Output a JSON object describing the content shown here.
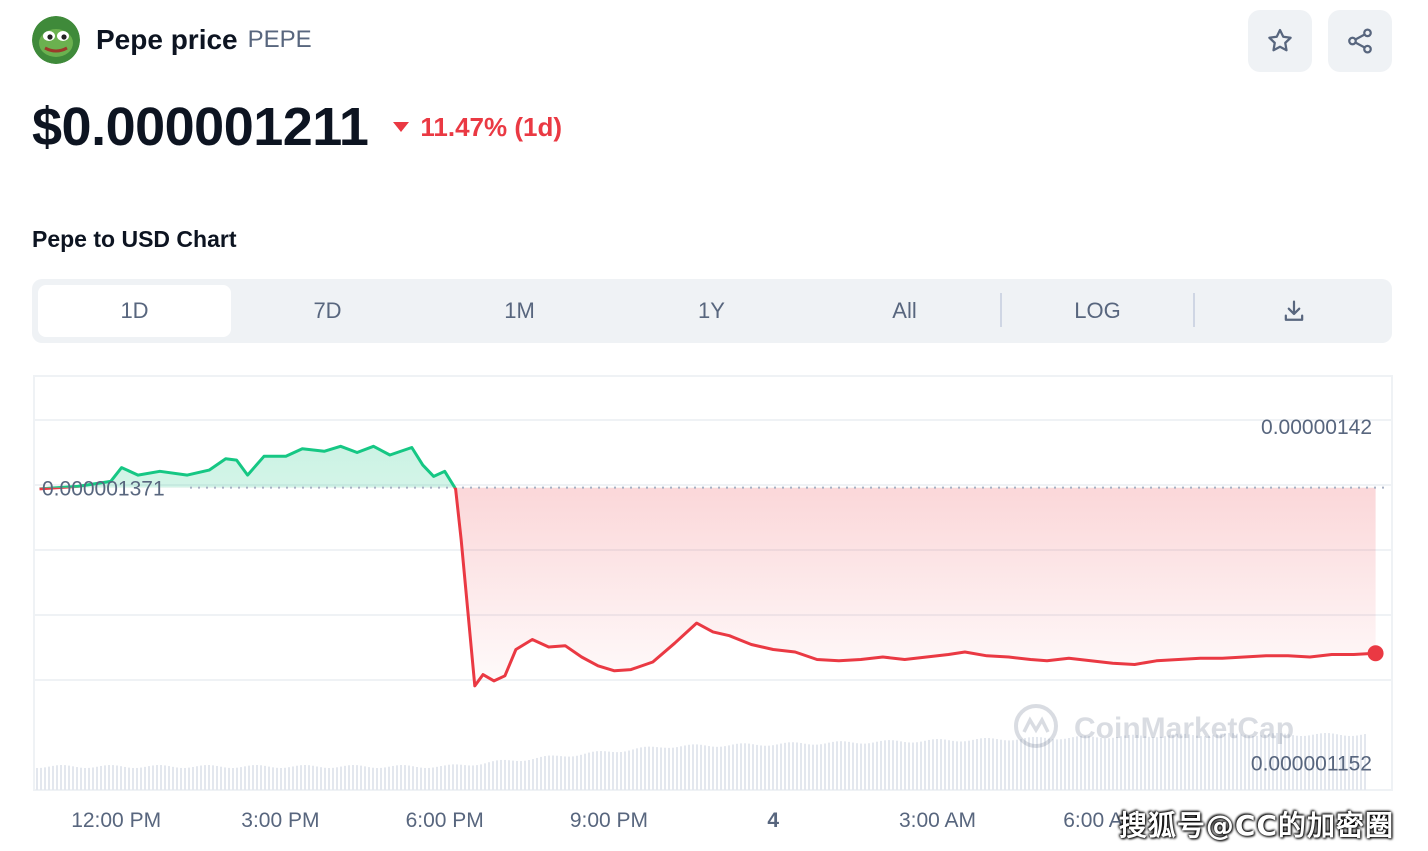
{
  "coin": {
    "name": "Pepe price",
    "symbol": "PEPE",
    "logo_icon": "pepe-frog-icon"
  },
  "header_actions": {
    "watchlist_icon": "star-icon",
    "share_icon": "share-icon"
  },
  "price": {
    "value": "$0.000001211",
    "change": "11.47% (1d)",
    "direction": "down",
    "change_color": "#ea3943"
  },
  "chart_title": "Pepe to USD Chart",
  "tabs": [
    {
      "label": "1D",
      "active": true
    },
    {
      "label": "7D",
      "active": false
    },
    {
      "label": "1M",
      "active": false
    },
    {
      "label": "1Y",
      "active": false
    },
    {
      "label": "All",
      "active": false
    },
    {
      "label": "LOG",
      "active": false
    },
    {
      "label": "download-icon",
      "active": false
    }
  ],
  "chart_data": {
    "type": "area",
    "baseline": 1.371e-06,
    "baseline_label": "0.000001371",
    "ylim": [
      1.13e-06,
      1.46e-06
    ],
    "y_axis_labels": [
      "0.00000142",
      "0.000001152"
    ],
    "x_tick_labels": [
      "12:00 PM",
      "3:00 PM",
      "6:00 PM",
      "9:00 PM",
      "4",
      "3:00 AM",
      "6:00 AM"
    ],
    "x_tick_hours": [
      12,
      15,
      18,
      21,
      24,
      27,
      30
    ],
    "xlim": [
      10.5,
      35.3
    ],
    "up_color": "#16c784",
    "down_color": "#ea3943",
    "watermark": "CoinMarketCap",
    "series": [
      {
        "values": [
          [
            10.6,
            1.37e-06
          ],
          [
            11.3,
            1.372e-06
          ],
          [
            11.9,
            1.376e-06
          ],
          [
            12.1,
            1.387e-06
          ],
          [
            12.4,
            1.381e-06
          ],
          [
            12.8,
            1.384e-06
          ],
          [
            13.3,
            1.381e-06
          ],
          [
            13.7,
            1.385e-06
          ],
          [
            14.0,
            1.394e-06
          ],
          [
            14.2,
            1.393e-06
          ],
          [
            14.4,
            1.381e-06
          ],
          [
            14.7,
            1.396e-06
          ],
          [
            15.1,
            1.396e-06
          ],
          [
            15.4,
            1.402e-06
          ],
          [
            15.8,
            1.4e-06
          ],
          [
            16.1,
            1.404e-06
          ],
          [
            16.4,
            1.399e-06
          ],
          [
            16.7,
            1.404e-06
          ],
          [
            17.0,
            1.397e-06
          ],
          [
            17.4,
            1.403e-06
          ],
          [
            17.6,
            1.389e-06
          ],
          [
            17.8,
            1.38e-06
          ],
          [
            18.0,
            1.384e-06
          ],
          [
            18.2,
            1.37e-06
          ],
          [
            18.3,
            1.33e-06
          ],
          [
            18.45,
            1.26e-06
          ],
          [
            18.55,
            1.213e-06
          ],
          [
            18.7,
            1.222e-06
          ],
          [
            18.9,
            1.217e-06
          ],
          [
            19.1,
            1.221e-06
          ],
          [
            19.3,
            1.242e-06
          ],
          [
            19.6,
            1.25e-06
          ],
          [
            19.9,
            1.244e-06
          ],
          [
            20.2,
            1.245e-06
          ],
          [
            20.5,
            1.236e-06
          ],
          [
            20.8,
            1.229e-06
          ],
          [
            21.1,
            1.225e-06
          ],
          [
            21.4,
            1.226e-06
          ],
          [
            21.8,
            1.232e-06
          ],
          [
            22.2,
            1.247e-06
          ],
          [
            22.6,
            1.263e-06
          ],
          [
            22.9,
            1.256e-06
          ],
          [
            23.2,
            1.253e-06
          ],
          [
            23.6,
            1.246e-06
          ],
          [
            24.0,
            1.242e-06
          ],
          [
            24.4,
            1.24e-06
          ],
          [
            24.8,
            1.234e-06
          ],
          [
            25.2,
            1.233e-06
          ],
          [
            25.6,
            1.234e-06
          ],
          [
            26.0,
            1.236e-06
          ],
          [
            26.4,
            1.234e-06
          ],
          [
            26.8,
            1.236e-06
          ],
          [
            27.2,
            1.238e-06
          ],
          [
            27.5,
            1.24e-06
          ],
          [
            27.9,
            1.237e-06
          ],
          [
            28.3,
            1.236e-06
          ],
          [
            28.7,
            1.234e-06
          ],
          [
            29.0,
            1.233e-06
          ],
          [
            29.4,
            1.235e-06
          ],
          [
            29.8,
            1.233e-06
          ],
          [
            30.2,
            1.231e-06
          ],
          [
            30.6,
            1.23e-06
          ],
          [
            31.0,
            1.233e-06
          ],
          [
            31.4,
            1.234e-06
          ],
          [
            31.8,
            1.235e-06
          ],
          [
            32.2,
            1.235e-06
          ],
          [
            32.6,
            1.236e-06
          ],
          [
            33.0,
            1.237e-06
          ],
          [
            33.4,
            1.237e-06
          ],
          [
            33.8,
            1.236e-06
          ],
          [
            34.2,
            1.238e-06
          ],
          [
            34.6,
            1.238e-06
          ],
          [
            35.0,
            1.239e-06
          ]
        ]
      }
    ]
  },
  "overlay_watermark": "搜狐号@CC的加密圈"
}
